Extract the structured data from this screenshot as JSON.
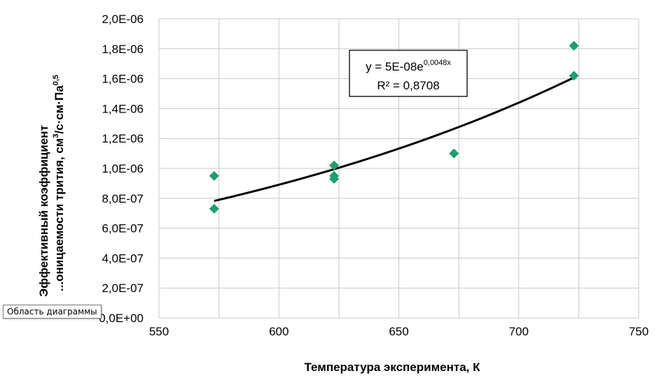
{
  "chart_data": {
    "type": "scatter",
    "xlabel": "Температура эксперимента, К",
    "ylabel_line1": "Эффективный коэффициент",
    "ylabel_line2_parts": [
      "...оницаемости трития, см",
      "3",
      "/с·см·Па",
      "0,5"
    ],
    "xlim": [
      550,
      750
    ],
    "ylim": [
      0,
      2e-06
    ],
    "x_ticks": [
      "550",
      "600",
      "650",
      "700",
      "750"
    ],
    "y_ticks": [
      "0,0E+00",
      "2,0E-07",
      "4,0E-07",
      "6,0E-07",
      "8,0E-07",
      "1,0E-06",
      "1,2E-06",
      "1,4E-06",
      "1,6E-06",
      "1,8E-06",
      "2,0E-06"
    ],
    "grid": true,
    "marker": "diamond",
    "marker_color": "#1f9e6e",
    "trendline_color": "#000000",
    "points": [
      {
        "x": 573,
        "y": 9.5e-07
      },
      {
        "x": 573,
        "y": 7.3e-07
      },
      {
        "x": 623,
        "y": 1.02e-06
      },
      {
        "x": 623,
        "y": 9.5e-07
      },
      {
        "x": 623,
        "y": 9.3e-07
      },
      {
        "x": 673,
        "y": 1.1e-06
      },
      {
        "x": 723,
        "y": 1.82e-06
      },
      {
        "x": 723,
        "y": 1.62e-06
      }
    ],
    "trendline": {
      "type": "exponential",
      "a": 5e-08,
      "b": 0.0048,
      "x_range": [
        573,
        723
      ],
      "equation_parts": [
        "y = 5E-08e",
        "0,0048x"
      ],
      "r2_text": "R² = 0,8708"
    }
  },
  "tooltip": {
    "text": "Область диаграммы"
  }
}
